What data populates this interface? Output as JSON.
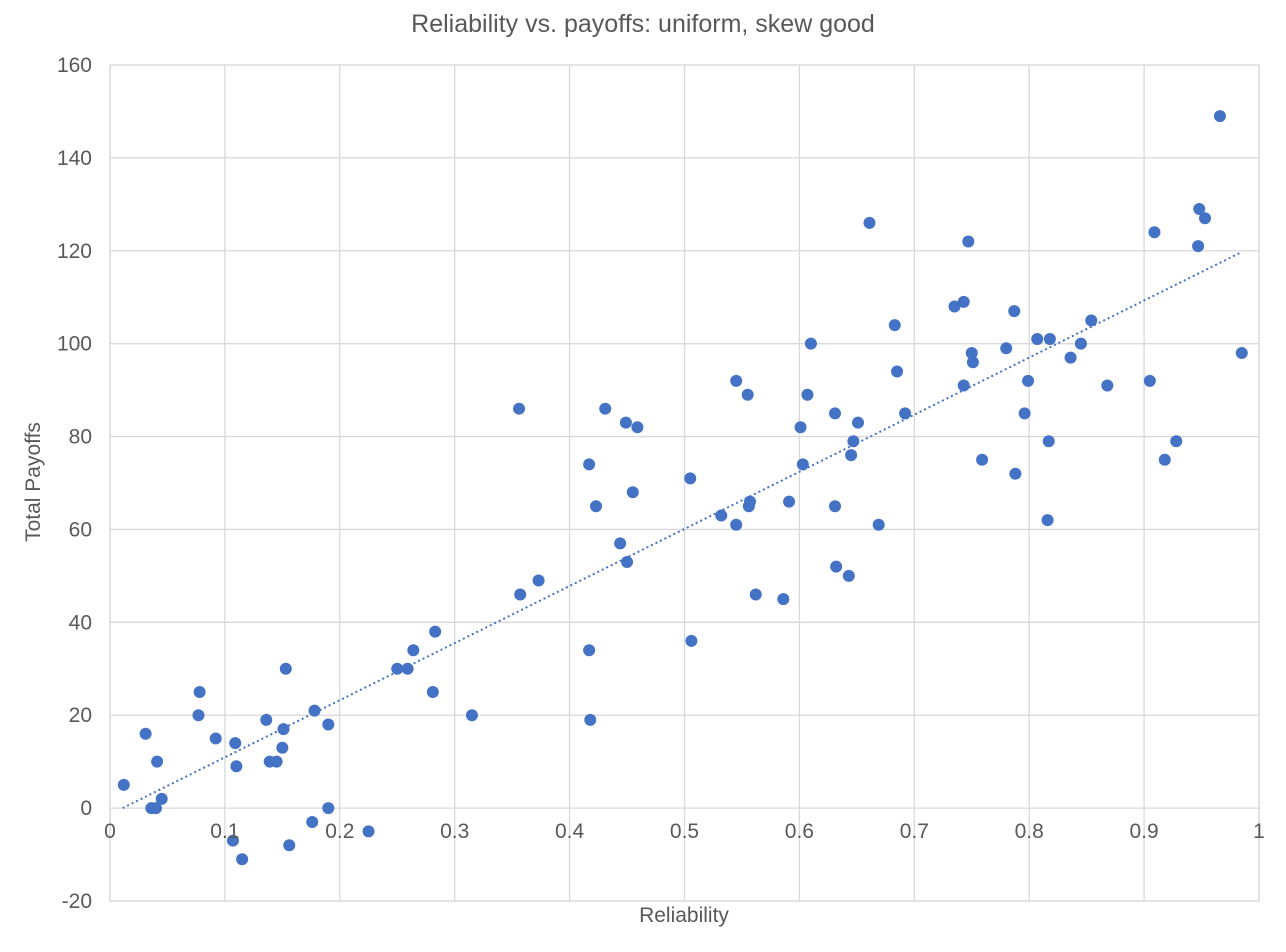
{
  "chart_data": {
    "type": "scatter",
    "title": "Reliability vs. payoffs: uniform, skew good",
    "xlabel": "Reliability",
    "ylabel": "Total Payoffs",
    "xlim": [
      0,
      1
    ],
    "ylim": [
      -20,
      160
    ],
    "x_ticks": [
      0,
      0.1,
      0.2,
      0.3,
      0.4,
      0.5,
      0.6,
      0.7,
      0.8,
      0.9,
      1
    ],
    "x_tick_labels": [
      "0",
      "0.1",
      "0.2",
      "0.3",
      "0.4",
      "0.5",
      "0.6",
      "0.7",
      "0.8",
      "0.9",
      "1"
    ],
    "y_ticks": [
      -20,
      0,
      20,
      40,
      60,
      80,
      100,
      120,
      140,
      160
    ],
    "y_tick_labels": [
      "-20",
      "0",
      "20",
      "40",
      "60",
      "80",
      "100",
      "120",
      "140",
      "160"
    ],
    "grid": true,
    "legend": "none",
    "marker_color": "#4472C4",
    "trendline": {
      "type": "linear",
      "style": "dotted",
      "x": [
        0.011,
        0.983
      ],
      "y": [
        0,
        119.5
      ]
    },
    "series": [
      {
        "x": [
          0.012,
          0.031,
          0.036,
          0.04,
          0.041,
          0.045,
          0.078,
          0.077,
          0.092,
          0.107,
          0.109,
          0.11,
          0.115,
          0.136,
          0.139,
          0.145,
          0.15,
          0.151,
          0.153,
          0.156,
          0.176,
          0.178,
          0.19,
          0.19,
          0.225,
          0.25,
          0.259,
          0.264,
          0.281,
          0.283,
          0.315,
          0.356,
          0.357,
          0.373,
          0.417,
          0.417,
          0.418,
          0.423,
          0.431,
          0.444,
          0.449,
          0.45,
          0.455,
          0.459,
          0.505,
          0.506,
          0.532,
          0.545,
          0.545,
          0.555,
          0.556,
          0.557,
          0.562,
          0.586,
          0.591,
          0.601,
          0.603,
          0.607,
          0.61,
          0.631,
          0.631,
          0.632,
          0.643,
          0.645,
          0.647,
          0.651,
          0.661,
          0.669,
          0.683,
          0.685,
          0.692,
          0.735,
          0.743,
          0.743,
          0.747,
          0.75,
          0.751,
          0.759,
          0.78,
          0.787,
          0.788,
          0.796,
          0.799,
          0.807,
          0.816,
          0.817,
          0.818,
          0.836,
          0.845,
          0.854,
          0.868,
          0.905,
          0.909,
          0.918,
          0.928,
          0.947,
          0.948,
          0.953,
          0.966,
          0.985
        ],
        "y": [
          5,
          16,
          0,
          0,
          10,
          2,
          25,
          20,
          15,
          -7,
          14,
          9,
          -11,
          19,
          10,
          10,
          13,
          17,
          30,
          -8,
          -3,
          21,
          18,
          0,
          -5,
          30,
          30,
          34,
          25,
          38,
          20,
          86,
          46,
          49,
          34,
          74,
          19,
          65,
          86,
          57,
          83,
          53,
          68,
          82,
          71,
          36,
          63,
          92,
          61,
          89,
          65,
          66,
          46,
          45,
          66,
          82,
          74,
          89,
          100,
          85,
          65,
          52,
          50,
          76,
          79,
          83,
          126,
          61,
          104,
          94,
          85,
          108,
          109,
          91,
          122,
          98,
          96,
          75,
          99,
          107,
          72,
          85,
          92,
          101,
          62,
          79,
          101,
          97,
          100,
          105,
          91,
          92,
          124,
          75,
          79,
          121,
          129,
          127,
          149,
          98
        ]
      }
    ]
  }
}
